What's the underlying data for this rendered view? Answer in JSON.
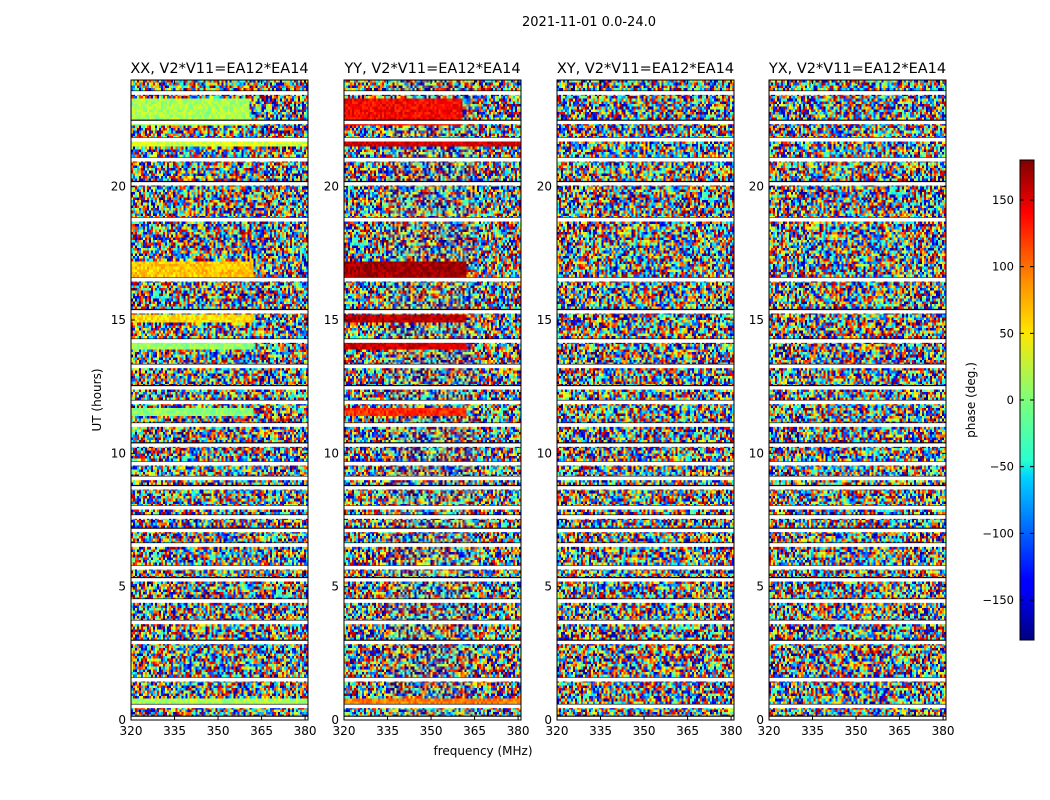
{
  "figure": {
    "suptitle": "2021-11-01 0.0-24.0",
    "colormap": "jet"
  },
  "chart_data": [
    {
      "type": "heatmap",
      "title": "XX, V2*V11=EA12*EA14",
      "xlabel": "",
      "ylabel": "UT (hours)",
      "xlim": [
        320,
        381
      ],
      "ylim": [
        0,
        24
      ],
      "xticks": [
        320,
        335,
        350,
        365,
        380
      ],
      "yticks": [
        0,
        5,
        10,
        15,
        20
      ],
      "value_range": [
        -180,
        180
      ],
      "flagged_rows_hours": [
        0.05,
        0.5,
        1.5,
        2.9,
        3.65,
        4.45,
        5.25,
        5.7,
        6.55,
        7.1,
        7.6,
        7.95,
        8.7,
        9.05,
        9.6,
        10.3,
        11.05,
        11.9,
        12.45,
        13.25,
        14.2,
        15.3,
        16.5,
        18.75,
        20.1,
        21.0,
        21.75,
        22.4,
        23.5
      ],
      "coherent_bands": [
        {
          "y0": 16.5,
          "y1": 17.2,
          "x0": 320,
          "x1": 362,
          "phase": 65
        },
        {
          "y0": 14.9,
          "y1": 15.15,
          "x0": 320,
          "x1": 362,
          "phase": 55
        },
        {
          "y0": 13.9,
          "y1": 14.2,
          "x0": 320,
          "x1": 362,
          "phase": 10
        },
        {
          "y0": 11.4,
          "y1": 11.7,
          "x0": 320,
          "x1": 362,
          "phase": 5
        },
        {
          "y0": 0.5,
          "y1": 0.75,
          "x0": 320,
          "x1": 381,
          "phase": 15
        },
        {
          "y0": 22.3,
          "y1": 23.3,
          "x0": 320,
          "x1": 361,
          "phase": 15
        },
        {
          "y0": 21.5,
          "y1": 21.7,
          "x0": 320,
          "x1": 381,
          "phase": 30
        }
      ]
    },
    {
      "type": "heatmap",
      "title": "YY, V2*V11=EA12*EA14",
      "xlabel": "frequency (MHz)",
      "ylabel": "",
      "xlim": [
        320,
        381
      ],
      "ylim": [
        0,
        24
      ],
      "xticks": [
        320,
        335,
        350,
        365,
        380
      ],
      "yticks": [
        0,
        5,
        10,
        15,
        20
      ],
      "value_range": [
        -180,
        180
      ],
      "flagged_rows_hours": [
        0.05,
        0.5,
        1.5,
        2.9,
        3.65,
        4.45,
        5.25,
        5.7,
        6.55,
        7.1,
        7.6,
        7.95,
        8.7,
        9.05,
        9.6,
        10.3,
        11.05,
        11.9,
        12.45,
        13.25,
        14.2,
        15.3,
        16.5,
        18.75,
        20.1,
        21.0,
        21.75,
        22.4,
        23.5
      ],
      "coherent_bands": [
        {
          "y0": 16.5,
          "y1": 17.2,
          "x0": 320,
          "x1": 362,
          "phase": 170
        },
        {
          "y0": 14.9,
          "y1": 15.15,
          "x0": 320,
          "x1": 362,
          "phase": 160
        },
        {
          "y0": 13.9,
          "y1": 14.2,
          "x0": 320,
          "x1": 362,
          "phase": 150
        },
        {
          "y0": 11.4,
          "y1": 11.7,
          "x0": 320,
          "x1": 362,
          "phase": 120
        },
        {
          "y0": 0.5,
          "y1": 0.75,
          "x0": 320,
          "x1": 381,
          "phase": 90
        },
        {
          "y0": 22.3,
          "y1": 23.3,
          "x0": 320,
          "x1": 361,
          "phase": 135
        },
        {
          "y0": 21.5,
          "y1": 21.7,
          "x0": 320,
          "x1": 381,
          "phase": 150
        }
      ]
    },
    {
      "type": "heatmap",
      "title": "XY, V2*V11=EA12*EA14",
      "xlabel": "",
      "ylabel": "",
      "xlim": [
        320,
        381
      ],
      "ylim": [
        0,
        24
      ],
      "xticks": [
        320,
        335,
        350,
        365,
        380
      ],
      "yticks": [
        0,
        5,
        10,
        15,
        20
      ],
      "value_range": [
        -180,
        180
      ],
      "flagged_rows_hours": [
        0.05,
        0.5,
        1.5,
        2.9,
        3.65,
        4.45,
        5.25,
        5.7,
        6.55,
        7.1,
        7.6,
        7.95,
        8.7,
        9.05,
        9.6,
        10.3,
        11.05,
        11.9,
        12.45,
        13.25,
        14.2,
        15.3,
        16.5,
        18.75,
        20.1,
        21.0,
        21.75,
        22.4,
        23.5
      ],
      "coherent_bands": []
    },
    {
      "type": "heatmap",
      "title": "YX, V2*V11=EA12*EA14",
      "xlabel": "",
      "ylabel": "",
      "xlim": [
        320,
        381
      ],
      "ylim": [
        0,
        24
      ],
      "xticks": [
        320,
        335,
        350,
        365,
        380
      ],
      "yticks": [
        0,
        5,
        10,
        15,
        20
      ],
      "value_range": [
        -180,
        180
      ],
      "flagged_rows_hours": [
        0.05,
        0.5,
        1.5,
        2.9,
        3.65,
        4.45,
        5.25,
        5.7,
        6.55,
        7.1,
        7.6,
        7.95,
        8.7,
        9.05,
        9.6,
        10.3,
        11.05,
        11.9,
        12.45,
        13.25,
        14.2,
        15.3,
        16.5,
        18.75,
        20.1,
        21.0,
        21.75,
        22.4,
        23.5
      ],
      "coherent_bands": []
    }
  ],
  "colorbar": {
    "label": "phase (deg.)",
    "range": [
      -180,
      180
    ],
    "ticks": [
      150,
      100,
      50,
      0,
      -50,
      -100,
      -150
    ],
    "tick_labels": [
      "150",
      "100",
      "50",
      "0",
      "−50",
      "−100",
      "−150"
    ]
  }
}
